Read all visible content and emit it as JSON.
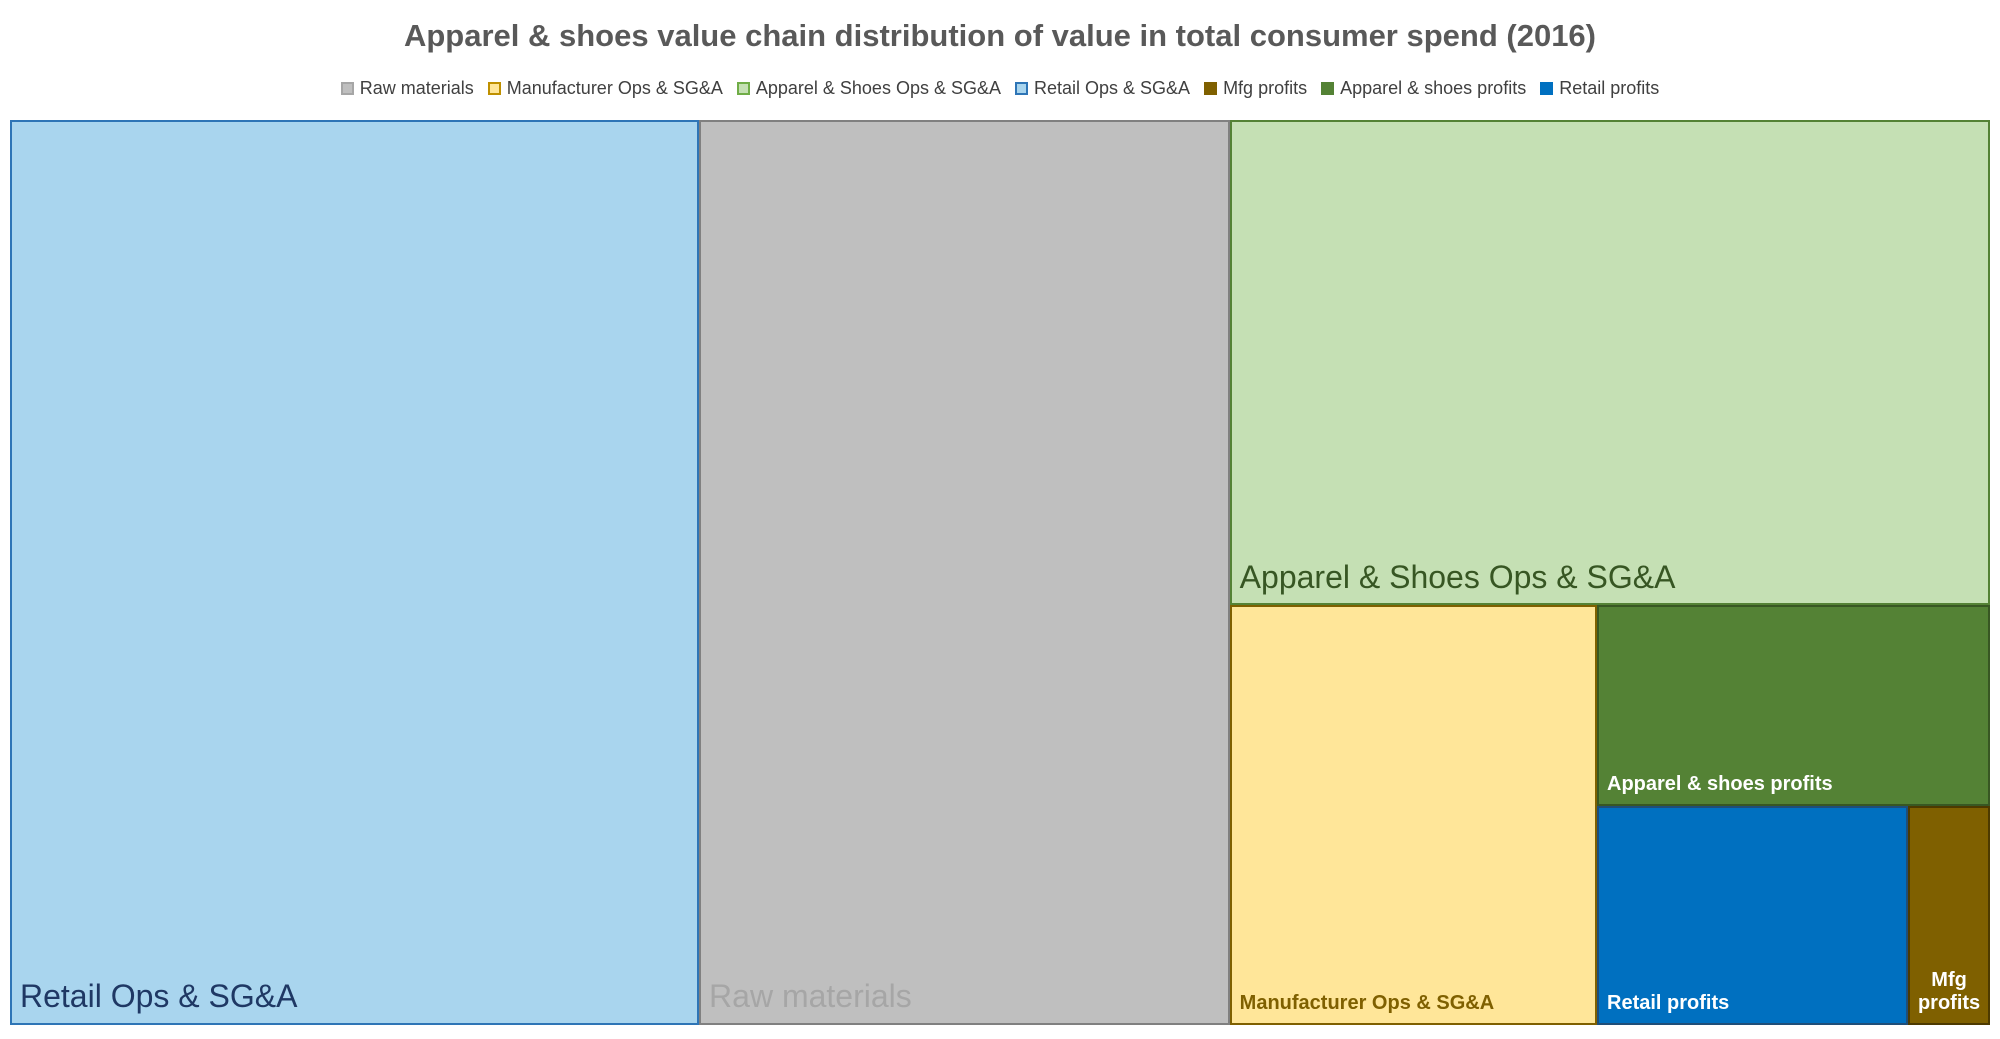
{
  "chart_data": {
    "type": "treemap",
    "title": "Apparel & shoes value chain distribution of value in total consumer spend (2016)",
    "legend_position": "top",
    "legend": [
      {
        "name": "Raw materials",
        "fill": "#bfbfbf",
        "border": "#a6a6a6"
      },
      {
        "name": "Manufacturer Ops & SG&A",
        "fill": "#ffe699",
        "border": "#bf9000"
      },
      {
        "name": "Apparel & Shoes Ops & SG&A",
        "fill": "#c5e0b4",
        "border": "#70ad47"
      },
      {
        "name": "Retail Ops & SG&A",
        "fill": "#a9d5ee",
        "border": "#2e75b6"
      },
      {
        "name": "Mfg profits",
        "fill": "#7f6000",
        "border": "#7f6000"
      },
      {
        "name": "Apparel & shoes profits",
        "fill": "#548235",
        "border": "#548235"
      },
      {
        "name": "Retail profits",
        "fill": "#0070c0",
        "border": "#0070c0"
      }
    ],
    "tiles": [
      {
        "name": "Retail Ops & SG&A",
        "label": "Retail Ops & SG&A",
        "value": 34.8,
        "fill": "#a9d5ee",
        "border": "#2e75b6",
        "text_color": "#1f3864"
      },
      {
        "name": "Raw materials",
        "label": "Raw materials",
        "value": 26.8,
        "fill": "#bfbfbf",
        "border": "#808080",
        "text_color": "#a6a6a6"
      },
      {
        "name": "Apparel & Shoes Ops & SG&A",
        "label": "Apparel & Shoes Ops & SG&A",
        "value": 20.6,
        "fill": "#c5e0b4",
        "border": "#548235",
        "text_color": "#375623"
      },
      {
        "name": "Manufacturer Ops & SG&A",
        "label": "Manufacturer Ops & SG&A",
        "value": 8.6,
        "fill": "#ffe699",
        "border": "#7f6000",
        "text_color": "#7f6000"
      },
      {
        "name": "Apparel & shoes profits",
        "label": "Apparel & shoes profits",
        "value": 4.4,
        "fill": "#548235",
        "border": "#385723",
        "text_color": "#ffffff"
      },
      {
        "name": "Retail profits",
        "label": "Retail profits",
        "value": 3.8,
        "fill": "#0070c0",
        "border": "#1f4e79",
        "text_color": "#ffffff"
      },
      {
        "name": "Mfg profits",
        "label": "Mfg profits",
        "value": 1.0,
        "fill": "#7f6000",
        "border": "#4d3a00",
        "text_color": "#ffffff"
      }
    ]
  }
}
